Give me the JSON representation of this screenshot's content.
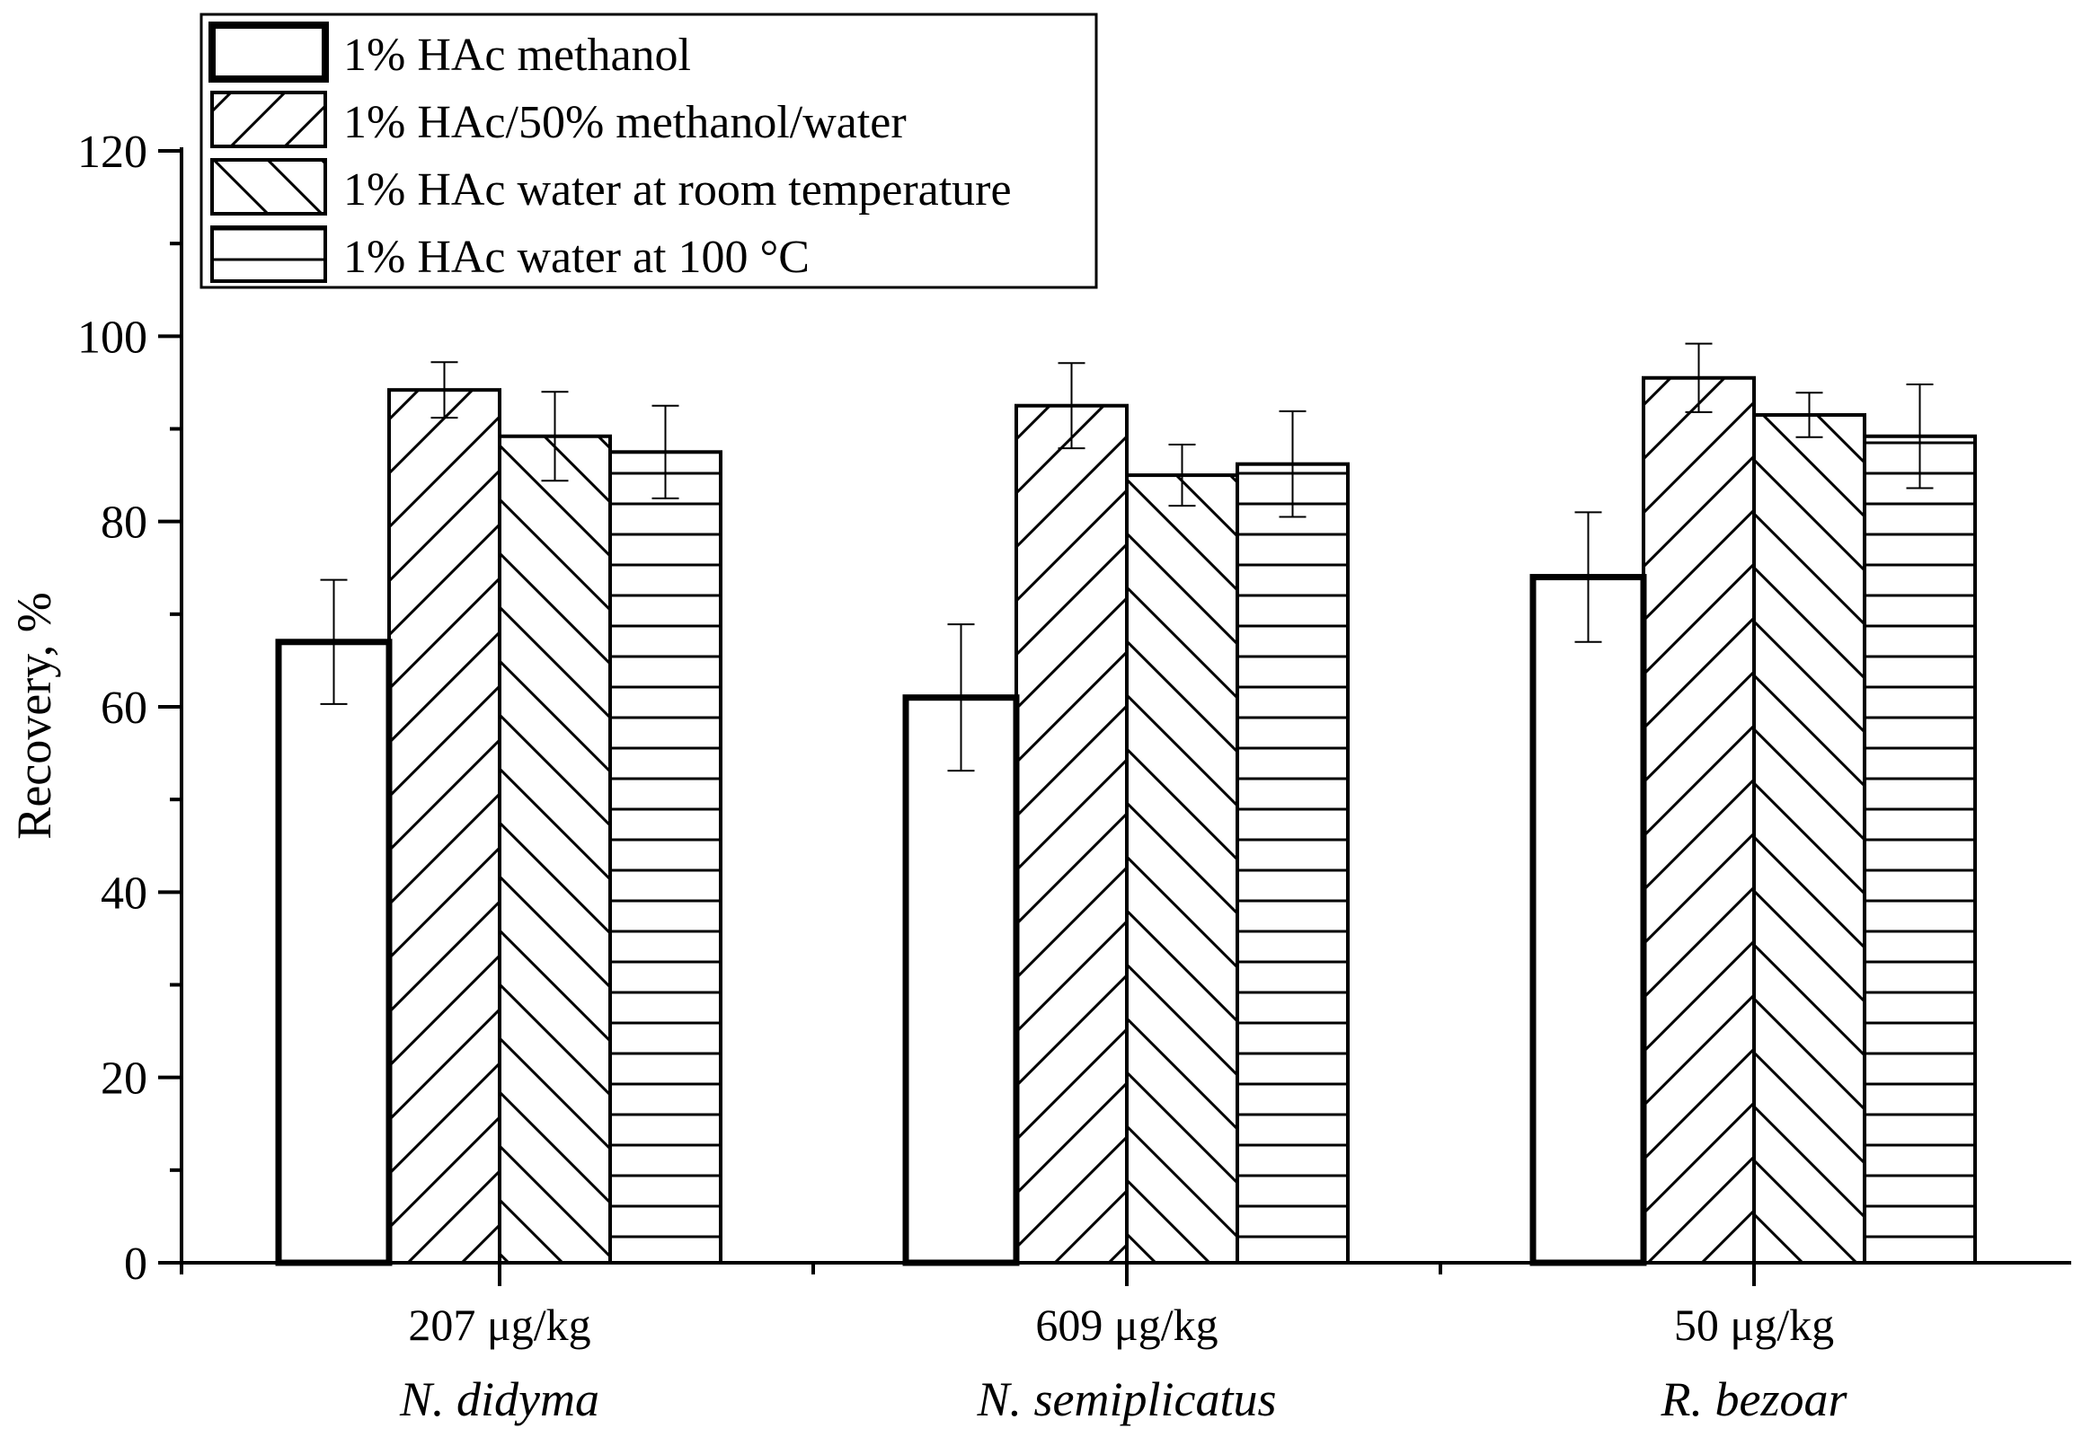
{
  "chart_data": {
    "type": "bar",
    "title": "",
    "xlabel": "",
    "ylabel": "Recovery, %",
    "ylim": [
      0,
      120
    ],
    "yticks": [
      0,
      20,
      40,
      60,
      80,
      100,
      120
    ],
    "grid": false,
    "legend_position": "top-left",
    "categories": [
      {
        "label": "207 μg/kg",
        "species": "N. didyma"
      },
      {
        "label": "609 μg/kg",
        "species": "N. semiplicatus"
      },
      {
        "label": "50 μg/kg",
        "species": "R. bezoar"
      }
    ],
    "series": [
      {
        "name": "1% HAc methanol",
        "pattern": "none",
        "values": [
          67,
          61,
          74
        ],
        "errors": [
          6.7,
          7.9,
          7.0
        ]
      },
      {
        "name": "1% HAc/50% methanol/water",
        "pattern": "forward-diagonal",
        "values": [
          94.2,
          92.5,
          95.5
        ],
        "errors": [
          3.0,
          4.6,
          3.7
        ]
      },
      {
        "name": "1% HAc water at room temperature",
        "pattern": "back-diagonal",
        "values": [
          89.2,
          85.0,
          91.5
        ],
        "errors": [
          4.8,
          3.3,
          2.4
        ]
      },
      {
        "name": "1% HAc water at 100 °C",
        "pattern": "horizontal",
        "values": [
          87.5,
          86.2,
          89.2
        ],
        "errors": [
          5.0,
          5.7,
          5.6
        ]
      }
    ]
  }
}
